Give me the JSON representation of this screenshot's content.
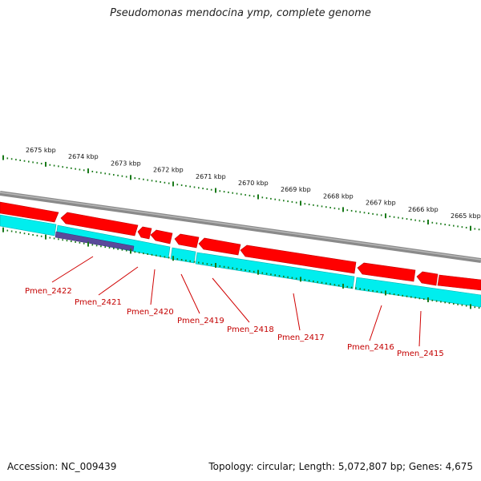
{
  "title": "Pseudomonas mendocina ymp, complete genome",
  "footer": {
    "accession": "Accession: NC_009439",
    "stats": "Topology: circular; Length: 5,072,807 bp; Genes: 4,675"
  },
  "ruler": {
    "labels": [
      "2675 kbp",
      "2674 kbp",
      "2673 kbp",
      "2672 kbp",
      "2671 kbp",
      "2670 kbp",
      "2669 kbp",
      "2668 kbp",
      "2667 kbp",
      "2666 kbp",
      "2665 kbp"
    ]
  },
  "genes": {
    "labels": [
      "Pmen_2422",
      "Pmen_2421",
      "Pmen_2420",
      "Pmen_2419",
      "Pmen_2418",
      "Pmen_2417",
      "Pmen_2416",
      "Pmen_2415"
    ]
  },
  "colors": {
    "backbone": "#8a8a8a",
    "gene_strand": "#ff0000",
    "cds_strand": "#00eeee",
    "highlight": "#5a4a9a",
    "tick": "#1a7a1a",
    "label": "#c40000"
  }
}
